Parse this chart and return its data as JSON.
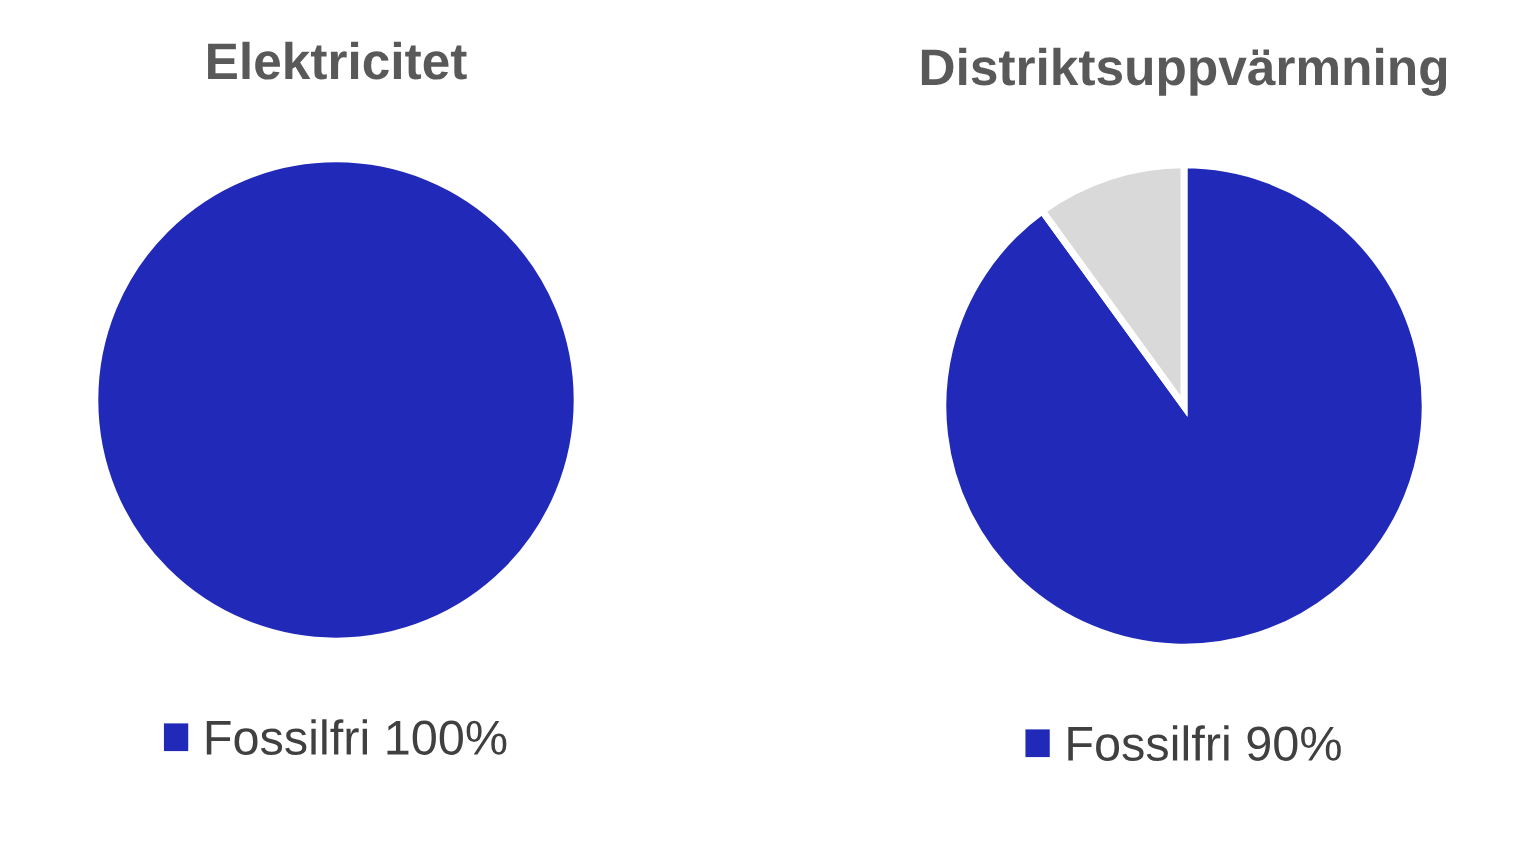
{
  "chart_data": [
    {
      "type": "pie",
      "title": "Elektricitet",
      "categories": [
        "Fossilfri 100%"
      ],
      "values": [
        100
      ],
      "colors": [
        "#2129b8"
      ],
      "legend": "bottom"
    },
    {
      "type": "pie",
      "title": "Distriktsuppvärmning",
      "categories": [
        "Fossilfri 90%",
        null
      ],
      "values": [
        90,
        10
      ],
      "colors": [
        "#2129b8",
        "#d9d9d9"
      ],
      "legend": "bottom"
    }
  ]
}
